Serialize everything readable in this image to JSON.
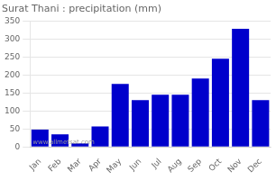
{
  "chart_data": {
    "type": "bar",
    "title": "Surat Thani : precipitation (mm)",
    "categories": [
      "Jan",
      "Feb",
      "Mar",
      "Apr",
      "May",
      "Jun",
      "Jul",
      "Aug",
      "Sep",
      "Oct",
      "Nov",
      "Dec"
    ],
    "values": [
      48,
      35,
      10,
      57,
      175,
      130,
      145,
      145,
      190,
      245,
      328,
      130
    ],
    "color": "#0000cc",
    "ylim": [
      0,
      350
    ],
    "yticks": [
      0,
      50,
      100,
      150,
      200,
      250,
      300,
      350
    ],
    "grid": true,
    "annotations": [
      "www.allmetsat.com"
    ]
  }
}
